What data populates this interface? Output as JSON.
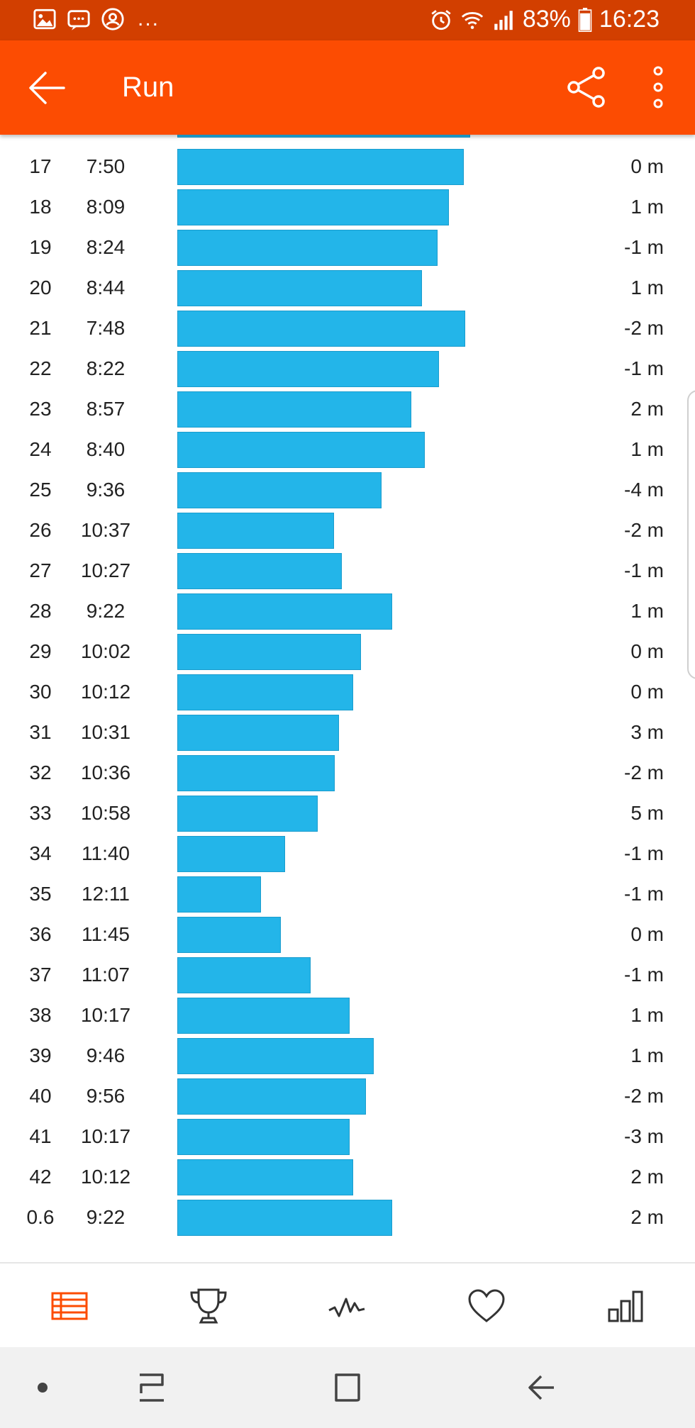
{
  "status_bar": {
    "battery": "83%",
    "time": "16:23",
    "overflow": "..."
  },
  "app_bar": {
    "title": "Run"
  },
  "splits": [
    {
      "num": "17",
      "pace": "7:50",
      "elev": "0 m",
      "pace_seconds": 470
    },
    {
      "num": "18",
      "pace": "8:09",
      "elev": "1 m",
      "pace_seconds": 489
    },
    {
      "num": "19",
      "pace": "8:24",
      "elev": "-1 m",
      "pace_seconds": 504
    },
    {
      "num": "20",
      "pace": "8:44",
      "elev": "1 m",
      "pace_seconds": 524
    },
    {
      "num": "21",
      "pace": "7:48",
      "elev": "-2 m",
      "pace_seconds": 468
    },
    {
      "num": "22",
      "pace": "8:22",
      "elev": "-1 m",
      "pace_seconds": 502
    },
    {
      "num": "23",
      "pace": "8:57",
      "elev": "2 m",
      "pace_seconds": 537
    },
    {
      "num": "24",
      "pace": "8:40",
      "elev": "1 m",
      "pace_seconds": 520
    },
    {
      "num": "25",
      "pace": "9:36",
      "elev": "-4 m",
      "pace_seconds": 576
    },
    {
      "num": "26",
      "pace": "10:37",
      "elev": "-2 m",
      "pace_seconds": 637
    },
    {
      "num": "27",
      "pace": "10:27",
      "elev": "-1 m",
      "pace_seconds": 627
    },
    {
      "num": "28",
      "pace": "9:22",
      "elev": "1 m",
      "pace_seconds": 562
    },
    {
      "num": "29",
      "pace": "10:02",
      "elev": "0 m",
      "pace_seconds": 602
    },
    {
      "num": "30",
      "pace": "10:12",
      "elev": "0 m",
      "pace_seconds": 612
    },
    {
      "num": "31",
      "pace": "10:31",
      "elev": "3 m",
      "pace_seconds": 631
    },
    {
      "num": "32",
      "pace": "10:36",
      "elev": "-2 m",
      "pace_seconds": 636
    },
    {
      "num": "33",
      "pace": "10:58",
      "elev": "5 m",
      "pace_seconds": 658
    },
    {
      "num": "34",
      "pace": "11:40",
      "elev": "-1 m",
      "pace_seconds": 700
    },
    {
      "num": "35",
      "pace": "12:11",
      "elev": "-1 m",
      "pace_seconds": 731
    },
    {
      "num": "36",
      "pace": "11:45",
      "elev": "0 m",
      "pace_seconds": 705
    },
    {
      "num": "37",
      "pace": "11:07",
      "elev": "-1 m",
      "pace_seconds": 667
    },
    {
      "num": "38",
      "pace": "10:17",
      "elev": "1 m",
      "pace_seconds": 617
    },
    {
      "num": "39",
      "pace": "9:46",
      "elev": "1 m",
      "pace_seconds": 586
    },
    {
      "num": "40",
      "pace": "9:56",
      "elev": "-2 m",
      "pace_seconds": 596
    },
    {
      "num": "41",
      "pace": "10:17",
      "elev": "-3 m",
      "pace_seconds": 617
    },
    {
      "num": "42",
      "pace": "10:12",
      "elev": "2 m",
      "pace_seconds": 612
    },
    {
      "num": "0.6",
      "pace": "9:22",
      "elev": "2 m",
      "pace_seconds": 562
    }
  ],
  "bottom_nav": {
    "items": [
      {
        "icon": "splits-table-icon",
        "active": true
      },
      {
        "icon": "trophy-icon",
        "active": false
      },
      {
        "icon": "pace-graph-icon",
        "active": false
      },
      {
        "icon": "heart-icon",
        "active": false
      },
      {
        "icon": "bar-chart-icon",
        "active": false
      }
    ]
  },
  "system_nav": {
    "items": [
      "home-dot-icon",
      "recent-apps-icon",
      "home-square-icon",
      "back-arrow-icon"
    ]
  },
  "colors": {
    "status_bar": "#d23f00",
    "app_bar": "#fc4c02",
    "split_bar": "#23b5e9",
    "active_nav": "#fc4c02",
    "inactive_nav": "#333333"
  }
}
